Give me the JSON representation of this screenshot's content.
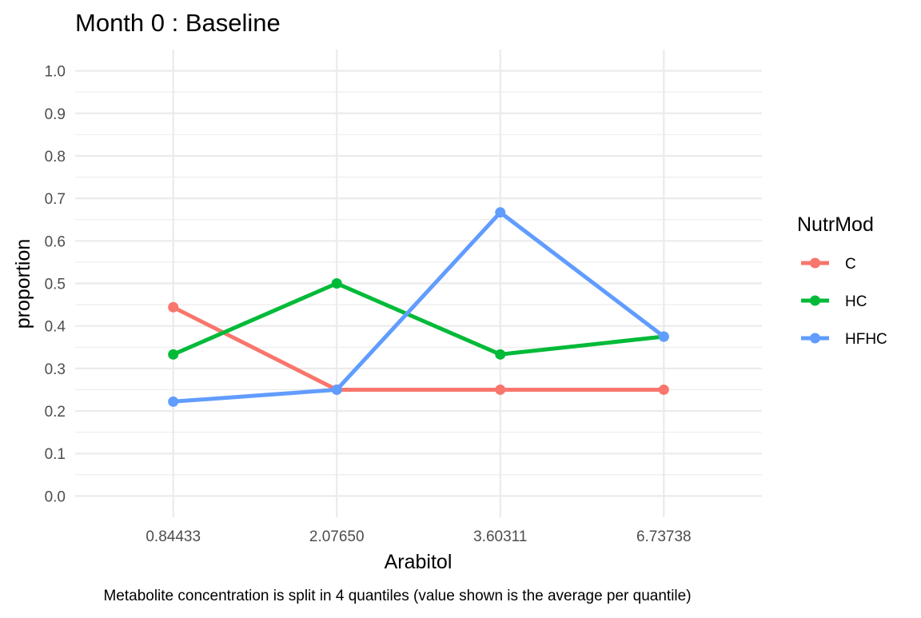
{
  "chart_data": {
    "type": "line",
    "title": "Month 0 : Baseline",
    "xlabel": "Arabitol",
    "ylabel": "proportion",
    "caption": "Metabolite concentration is split in 4 quantiles (value shown is the average per quantile)",
    "categories": [
      "0.84433",
      "2.07650",
      "3.60311",
      "6.73738"
    ],
    "ylim": [
      0,
      1
    ],
    "yticks": [
      "0.0",
      "0.1",
      "0.2",
      "0.3",
      "0.4",
      "0.5",
      "0.6",
      "0.7",
      "0.8",
      "0.9",
      "1.0"
    ],
    "grid": true,
    "legend": {
      "title": "NutrMod",
      "position": "right"
    },
    "series": [
      {
        "name": "C",
        "color": "#F8766D",
        "values": [
          0.444,
          0.25,
          0.25,
          0.25
        ]
      },
      {
        "name": "HC",
        "color": "#00BA38",
        "values": [
          0.333,
          0.5,
          0.333,
          0.375
        ]
      },
      {
        "name": "HFHC",
        "color": "#619CFF",
        "values": [
          0.222,
          0.25,
          0.667,
          0.375
        ]
      }
    ]
  }
}
